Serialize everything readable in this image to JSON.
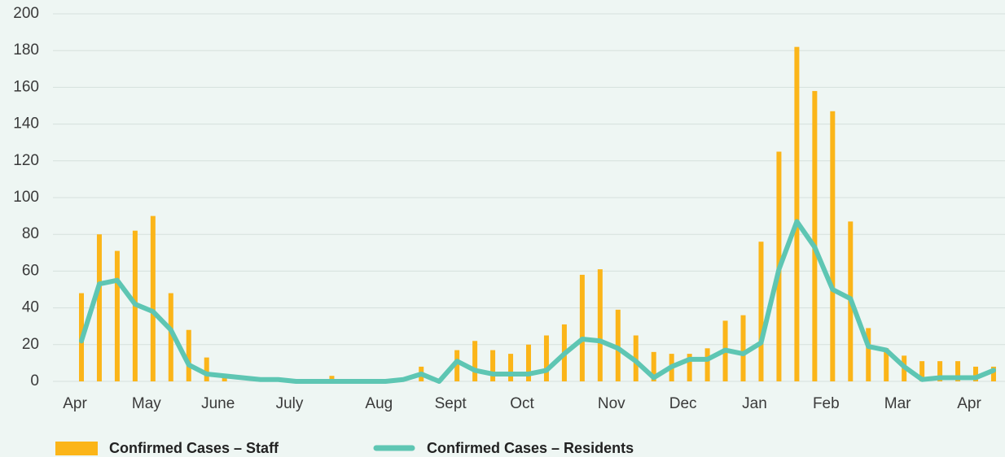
{
  "chart_data": {
    "type": "bar-line",
    "categories": [
      "Apr",
      null,
      null,
      null,
      "May",
      null,
      null,
      null,
      "June",
      null,
      null,
      null,
      "July",
      null,
      null,
      null,
      null,
      "Aug",
      null,
      null,
      null,
      "Sept",
      null,
      null,
      null,
      "Oct",
      null,
      null,
      null,
      null,
      "Nov",
      null,
      null,
      null,
      "Dec",
      null,
      null,
      null,
      "Jan",
      null,
      null,
      null,
      "Feb",
      null,
      null,
      null,
      "Mar",
      null,
      null,
      null,
      "Apr",
      null
    ],
    "series": [
      {
        "name": "Confirmed Cases – Staff",
        "type": "bar",
        "color": "#fbb519",
        "values": [
          48,
          80,
          71,
          82,
          90,
          48,
          28,
          13,
          2,
          0,
          0,
          0,
          0,
          0,
          3,
          0,
          0,
          0,
          0,
          8,
          0,
          17,
          22,
          17,
          15,
          20,
          25,
          31,
          58,
          61,
          39,
          25,
          16,
          15,
          15,
          18,
          33,
          36,
          76,
          125,
          182,
          158,
          147,
          87,
          29,
          18,
          14,
          11,
          11,
          11,
          8,
          8
        ]
      },
      {
        "name": "Confirmed Cases – Residents",
        "type": "line",
        "color": "#5ec6b3",
        "values": [
          22,
          53,
          55,
          42,
          38,
          28,
          9,
          4,
          3,
          2,
          1,
          1,
          0,
          0,
          0,
          0,
          0,
          0,
          1,
          4,
          0,
          11,
          6,
          4,
          4,
          4,
          6,
          15,
          23,
          22,
          18,
          11,
          2,
          8,
          12,
          12,
          17,
          15,
          21,
          61,
          87,
          73,
          50,
          45,
          19,
          17,
          8,
          1,
          2,
          2,
          2,
          6
        ]
      }
    ],
    "ylim": [
      0,
      200
    ],
    "yticks": [
      0,
      20,
      40,
      60,
      80,
      100,
      120,
      140,
      160,
      180,
      200
    ],
    "grid": true
  }
}
